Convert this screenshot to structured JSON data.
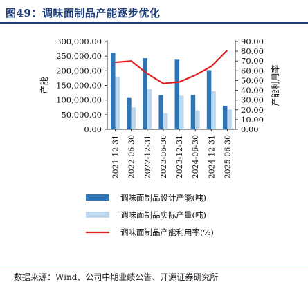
{
  "title": "图49：调味面制品产能逐步优化",
  "source": "数据来源：Wind、公司中期业绩公告、开源证券研究所",
  "chart_data": {
    "type": "bar",
    "categories": [
      "2021-12-31",
      "2022-06-30",
      "2022-12-31",
      "2023-06-30",
      "2023-12-31",
      "2024-06-30",
      "2024-12-31",
      "2025-06-30"
    ],
    "y_left": {
      "label": "产能",
      "ticks": [
        "300,000.00",
        "250,000.00",
        "200,000.00",
        "150,000.00",
        "100,000.00",
        "50,000.00",
        "0.00"
      ],
      "ylim": [
        0,
        300000
      ]
    },
    "y_right": {
      "label": "产能利用率",
      "ticks": [
        "90.00",
        "80.00",
        "70.00",
        "60.00",
        "50.00",
        "40.00",
        "30.00",
        "20.00",
        "10.00",
        "0.00"
      ],
      "ylim": [
        0,
        90
      ]
    },
    "series": [
      {
        "name": "调味面制品设计产能(吨)",
        "type": "bar",
        "axis": "left",
        "color": "#2e75b6",
        "values": [
          262000,
          107000,
          243000,
          117000,
          238000,
          117000,
          202000,
          80000
        ]
      },
      {
        "name": "调味面制品实际产量(吨)",
        "type": "bar",
        "axis": "left",
        "color": "#bdd7ee",
        "values": [
          180000,
          75000,
          138000,
          55000,
          115000,
          65000,
          130000,
          68000
        ]
      },
      {
        "name": "调味面制品产能利用率(%)",
        "type": "line",
        "axis": "right",
        "color": "#e02020",
        "values": [
          68.7,
          70.0,
          57.0,
          47.0,
          48.5,
          55.5,
          64.5,
          81.0
        ]
      }
    ],
    "grid": false,
    "legend": "bottom"
  }
}
